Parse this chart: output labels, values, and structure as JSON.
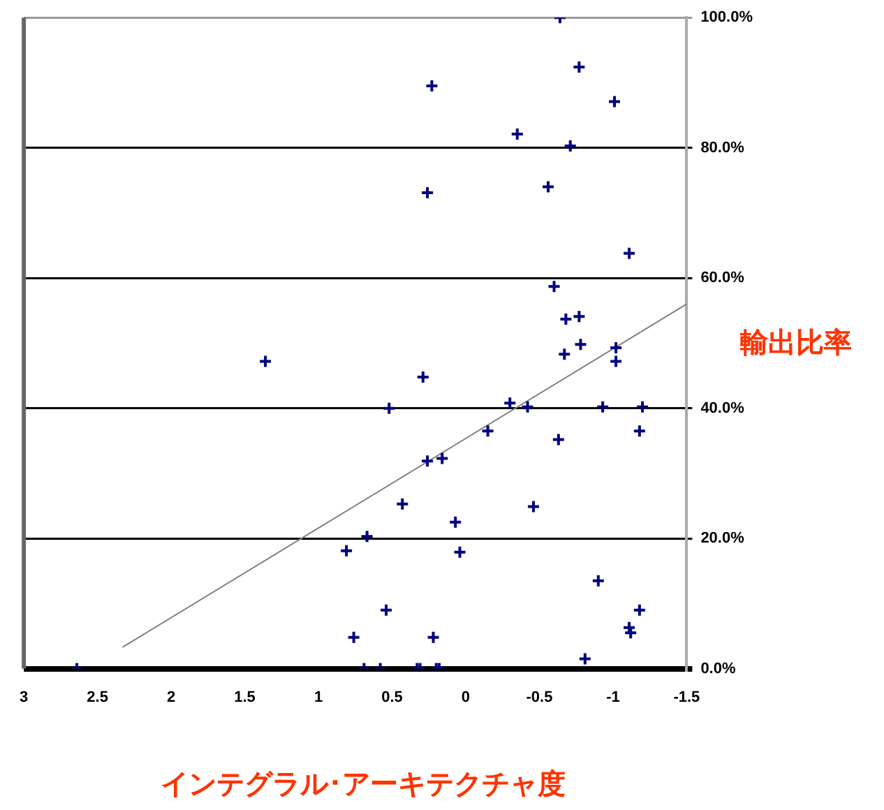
{
  "chart_data": {
    "type": "scatter",
    "xlabel": "インテグラル･アーキテクチャ度",
    "ylabel": "輸出比率",
    "xlim": [
      3,
      -1.5
    ],
    "xticks": [
      3,
      2.5,
      2,
      1.5,
      1,
      0.5,
      0,
      -0.5,
      -1,
      -1.5
    ],
    "ylim": [
      0,
      100
    ],
    "yticks": [
      {
        "value": 0,
        "label": "0.0%"
      },
      {
        "value": 20,
        "label": "20.0%"
      },
      {
        "value": 40,
        "label": "40.0%"
      },
      {
        "value": 60,
        "label": "60.0%"
      },
      {
        "value": 80,
        "label": "80.0%"
      },
      {
        "value": 100,
        "label": "100.0%"
      }
    ],
    "grid": "y",
    "legend": false,
    "marker": "cross",
    "series": [
      {
        "color": "#000080",
        "x": [
          -0.64,
          -0.77,
          0.23,
          -1.01,
          -0.35,
          -0.71,
          0.26,
          -0.56,
          -1.11,
          -0.6,
          -0.68,
          -0.77,
          -0.78,
          -0.67,
          -1.02,
          -1.02,
          1.36,
          0.29,
          0.52,
          -0.3,
          -0.42,
          -0.93,
          -1.2,
          -0.15,
          -1.18,
          -0.63,
          0.26,
          0.16,
          0.43,
          -0.46,
          0.07,
          0.67,
          0.81,
          0.04,
          -0.9,
          0.54,
          -1.18,
          -1.11,
          -1.12,
          0.76,
          0.22,
          -0.81,
          2.64,
          0.69,
          0.58,
          0.33,
          0.31,
          0.2,
          0.18
        ],
        "values": [
          100,
          92.4,
          89.5,
          87.1,
          82.1,
          80.3,
          73.1,
          74,
          63.8,
          58.7,
          53.7,
          54.1,
          49.8,
          48.3,
          49.3,
          47.2,
          47.2,
          44.8,
          40,
          40.8,
          40.2,
          40.2,
          40.2,
          36.5,
          36.5,
          35.2,
          31.9,
          32.3,
          25.3,
          24.9,
          22.5,
          20.3,
          18.1,
          17.9,
          13.5,
          9,
          9,
          6.3,
          5.5,
          4.8,
          4.8,
          1.5,
          0,
          0,
          0,
          0,
          0,
          0,
          0
        ]
      },
      {
        "type": "line",
        "color": "#808080",
        "x": [
          2.33,
          -1.5
        ],
        "values": [
          3.3,
          56
        ],
        "marker": "none"
      }
    ]
  }
}
